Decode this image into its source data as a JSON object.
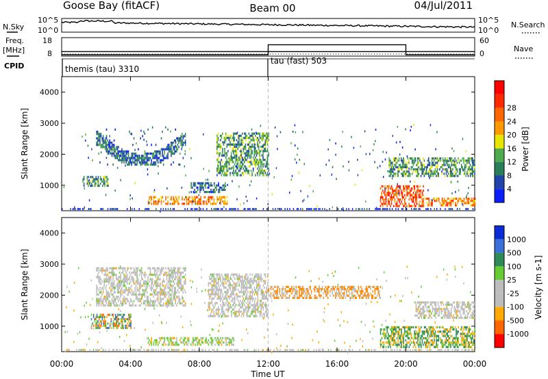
{
  "header": {
    "station": "Goose Bay (fitACF)",
    "beam": "Beam 00",
    "date": "04/Jul/2011"
  },
  "top_strip": {
    "left_label": "N.Sky",
    "left_ticks": [
      "10^5",
      "10^0"
    ],
    "right_label": "N.Search",
    "right_ticks": [
      "10^5",
      "10^0"
    ],
    "line_style_right": "dotted"
  },
  "freq_strip": {
    "left_label": "Freq.",
    "left_unit": "[MHz]",
    "left_ticks": [
      "18",
      "8"
    ],
    "right_label": "Nave",
    "right_ticks": [
      "60",
      "0"
    ],
    "freq_mhz": 10,
    "nave_segments": [
      {
        "start_h": 0,
        "end_h": 12,
        "nave": 0
      },
      {
        "start_h": 12,
        "end_h": 20,
        "nave": 38
      },
      {
        "start_h": 20,
        "end_h": 24,
        "nave": 0
      }
    ]
  },
  "cpid": {
    "label": "CPID",
    "modes": [
      {
        "name": "themis (tau) 3310",
        "start_h": 0
      },
      {
        "name": "tau (fast) 503",
        "start_h": 12
      }
    ]
  },
  "x_axis": {
    "label": "Time UT",
    "ticks": [
      "00:00",
      "04:00",
      "08:00",
      "12:00",
      "16:00",
      "20:00",
      "00:00"
    ],
    "tick_hours": [
      0,
      4,
      8,
      12,
      16,
      20,
      24
    ],
    "range_h": [
      0,
      24
    ]
  },
  "chart_data": [
    {
      "type": "heatmap",
      "title": "",
      "ylabel": "Slant Range [km]",
      "ylim": [
        180,
        4500
      ],
      "yticks": [
        "1000",
        "2000",
        "3000",
        "4000"
      ],
      "ytick_values": [
        1000,
        2000,
        3000,
        4000
      ],
      "colorbar": {
        "label": "Power [dB]",
        "ticks": [
          "4",
          "8",
          "12",
          "16",
          "20",
          "24",
          "28"
        ],
        "colors": [
          "#0a1eff",
          "#2244aa",
          "#2a7f5a",
          "#4faa4f",
          "#e6e600",
          "#ff9900",
          "#ff6600",
          "#ff2a00",
          "#ff0000"
        ]
      },
      "regions": [
        {
          "t0": 1.2,
          "t1": 2.7,
          "r0": 950,
          "r1": 1300,
          "level": 3
        },
        {
          "t0": 2.0,
          "t1": 7.2,
          "r0": 1700,
          "r1": 2900,
          "level": 2,
          "arc": true
        },
        {
          "t0": 9.0,
          "t1": 12.0,
          "r0": 1300,
          "r1": 2700,
          "level": 3
        },
        {
          "t0": 5.0,
          "t1": 9.6,
          "r0": 400,
          "r1": 650,
          "level": 6
        },
        {
          "t0": 7.5,
          "t1": 9.5,
          "r0": 800,
          "r1": 1100,
          "level": 2
        },
        {
          "t0": 18.5,
          "t1": 21.0,
          "r0": 350,
          "r1": 1000,
          "level": 7
        },
        {
          "t0": 21.0,
          "t1": 24.0,
          "r0": 350,
          "r1": 600,
          "level": 6
        },
        {
          "t0": 19.0,
          "t1": 24.0,
          "r0": 1300,
          "r1": 1900,
          "level": 3
        }
      ],
      "ground_band_km": [
        180,
        300
      ]
    },
    {
      "type": "heatmap",
      "title": "",
      "ylabel": "Slant Range [km]",
      "ylim": [
        180,
        4500
      ],
      "yticks": [
        "1000",
        "2000",
        "3000",
        "4000"
      ],
      "ytick_values": [
        1000,
        2000,
        3000,
        4000
      ],
      "colorbar": {
        "label": "Velocity [m s-1]",
        "ticks": [
          "1000",
          "500",
          "100",
          "25",
          "-25",
          "-100",
          "-500",
          "-1000"
        ],
        "colors": [
          "#0a2bd6",
          "#3b6fd9",
          "#2e8b57",
          "#66cc33",
          "#bdbdbd",
          "#bdbdbd",
          "#ffaa00",
          "#ff6600",
          "#ff0000"
        ]
      },
      "regions": [
        {
          "t0": 2.0,
          "t1": 7.2,
          "r0": 1700,
          "r1": 2900,
          "class": "grey"
        },
        {
          "t0": 1.7,
          "t1": 4.0,
          "r0": 950,
          "r1": 1400,
          "class": "mixed"
        },
        {
          "t0": 8.5,
          "t1": 12.0,
          "r0": 1300,
          "r1": 2700,
          "class": "grey"
        },
        {
          "t0": 5.0,
          "t1": 10.0,
          "r0": 400,
          "r1": 650,
          "class": "green"
        },
        {
          "t0": 12.0,
          "t1": 18.5,
          "r0": 1900,
          "r1": 2300,
          "class": "orange"
        },
        {
          "t0": 18.5,
          "t1": 24.0,
          "r0": 350,
          "r1": 1000,
          "class": "mixed-green-orange"
        },
        {
          "t0": 20.5,
          "t1": 24.0,
          "r0": 1300,
          "r1": 1800,
          "class": "grey"
        }
      ]
    }
  ]
}
